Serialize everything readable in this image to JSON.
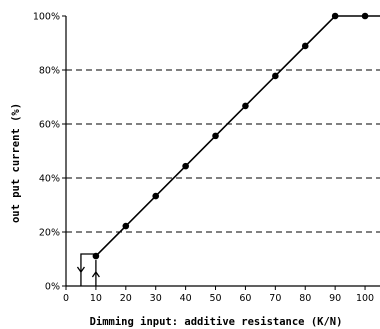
{
  "chart_data": {
    "type": "line",
    "title": "",
    "xlabel": "Dimming input: additive resistance (K/N)",
    "ylabel": "out put current  (%)",
    "xlim": [
      0,
      105
    ],
    "ylim": [
      0,
      100
    ],
    "x_ticks": [
      0,
      10,
      20,
      30,
      40,
      50,
      60,
      70,
      80,
      90,
      100
    ],
    "x_tick_labels": [
      "0",
      "10",
      "20",
      "30",
      "40",
      "50",
      "60",
      "70",
      "80",
      "90",
      "100"
    ],
    "y_ticks": [
      0,
      20,
      40,
      60,
      80,
      100
    ],
    "y_tick_labels": [
      "0%",
      "20%",
      "40%",
      "60%",
      "80%",
      "100%"
    ],
    "grid": "horizontal-dashed",
    "legend": "none",
    "series": [
      {
        "x": [
          10,
          20,
          30,
          40,
          50,
          60,
          70,
          80,
          90,
          100,
          105
        ],
        "y": [
          11.1,
          22.2,
          33.3,
          44.4,
          55.6,
          66.7,
          77.8,
          88.9,
          100,
          100,
          100
        ],
        "markers": [
          true,
          true,
          true,
          true,
          true,
          true,
          true,
          true,
          true,
          true,
          false
        ]
      }
    ],
    "hysteresis": {
      "off_threshold": 5,
      "on_threshold": 10,
      "level": 11.1
    },
    "colors": {
      "line": "#000000",
      "grid": "#000000",
      "background": "#ffffff"
    }
  }
}
